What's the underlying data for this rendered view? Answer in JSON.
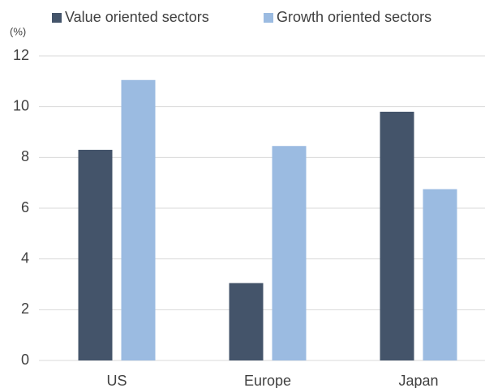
{
  "chart_data": {
    "type": "bar",
    "unit_label": "(%)",
    "categories": [
      "US",
      "Europe",
      "Japan"
    ],
    "series": [
      {
        "name": "Value oriented sectors",
        "color": "#44546a",
        "values": [
          8.3,
          3.05,
          9.8
        ]
      },
      {
        "name": "Growth oriented sectors",
        "color": "#9bbbe1",
        "values": [
          11.05,
          8.45,
          6.75
        ]
      }
    ],
    "ylim": [
      0,
      12
    ],
    "yticks": [
      0,
      2,
      4,
      6,
      8,
      10,
      12
    ],
    "grid": true,
    "legend": "top"
  }
}
